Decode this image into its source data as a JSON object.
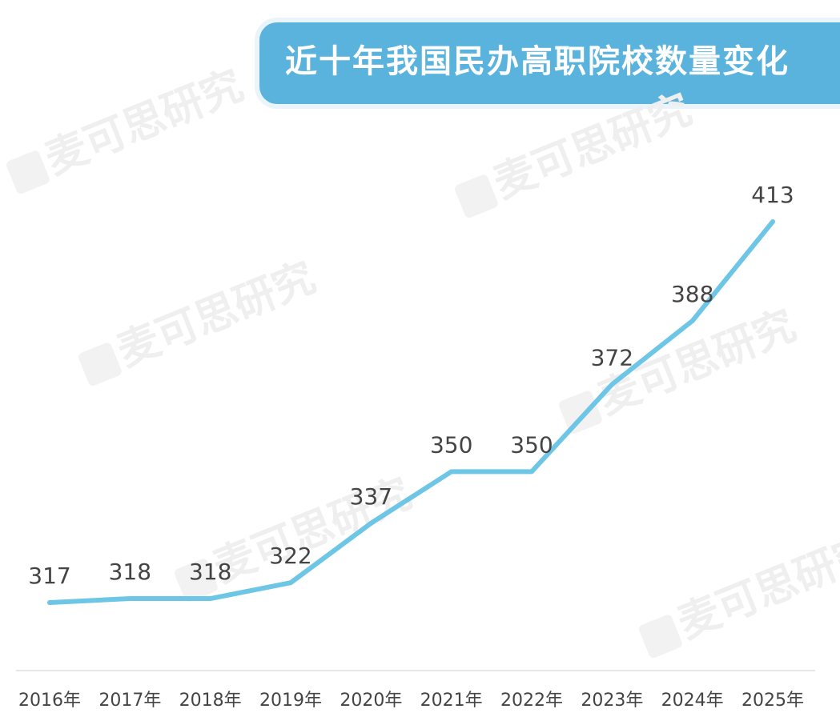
{
  "title": "近十年我国民办高职院校数量变化",
  "watermark": "麦可思研究",
  "chart_data": {
    "type": "line",
    "title": "近十年我国民办高职院校数量变化",
    "categories": [
      "2016年",
      "2017年",
      "2018年",
      "2019年",
      "2020年",
      "2021年",
      "2022年",
      "2023年",
      "2024年",
      "2025年"
    ],
    "series": [
      {
        "values": [
          317,
          318,
          318,
          322,
          337,
          350,
          350,
          372,
          388,
          413
        ]
      }
    ],
    "data_labels": true,
    "grid": false,
    "legend": "none",
    "line_color": "#6ec6e6",
    "axis_color": "#dddddd"
  }
}
